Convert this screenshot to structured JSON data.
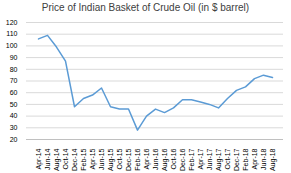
{
  "chart_data": {
    "type": "line",
    "title": "Price of Indian Basket of Crude Oil (in $ barrel)",
    "categories": [
      "Apr-14",
      "Jun-14",
      "Aug-14",
      "Oct-14",
      "Dec-14",
      "Feb-15",
      "Apr-15",
      "Jun-15",
      "Aug-15",
      "Oct-15",
      "Dec-15",
      "Feb-16",
      "Apr-16",
      "Jun-16",
      "Aug-16",
      "Oct-16",
      "Dec-16",
      "Feb-17",
      "Apr-17",
      "Jun-17",
      "Aug-17",
      "Oct-17",
      "Dec-17",
      "Feb-18",
      "Apr-18",
      "Jun-18",
      "Aug-18"
    ],
    "values": [
      106,
      109,
      99,
      87,
      48,
      55,
      58,
      64,
      48,
      46,
      46,
      28,
      40,
      46,
      43,
      47,
      54,
      54,
      52,
      50,
      47,
      55,
      62,
      65,
      72,
      75,
      73
    ],
    "color": "#5b9bd5",
    "ylim": [
      20,
      120
    ],
    "yticks": [
      20,
      30,
      40,
      50,
      60,
      70,
      80,
      90,
      100,
      110,
      120
    ],
    "grid": true
  }
}
